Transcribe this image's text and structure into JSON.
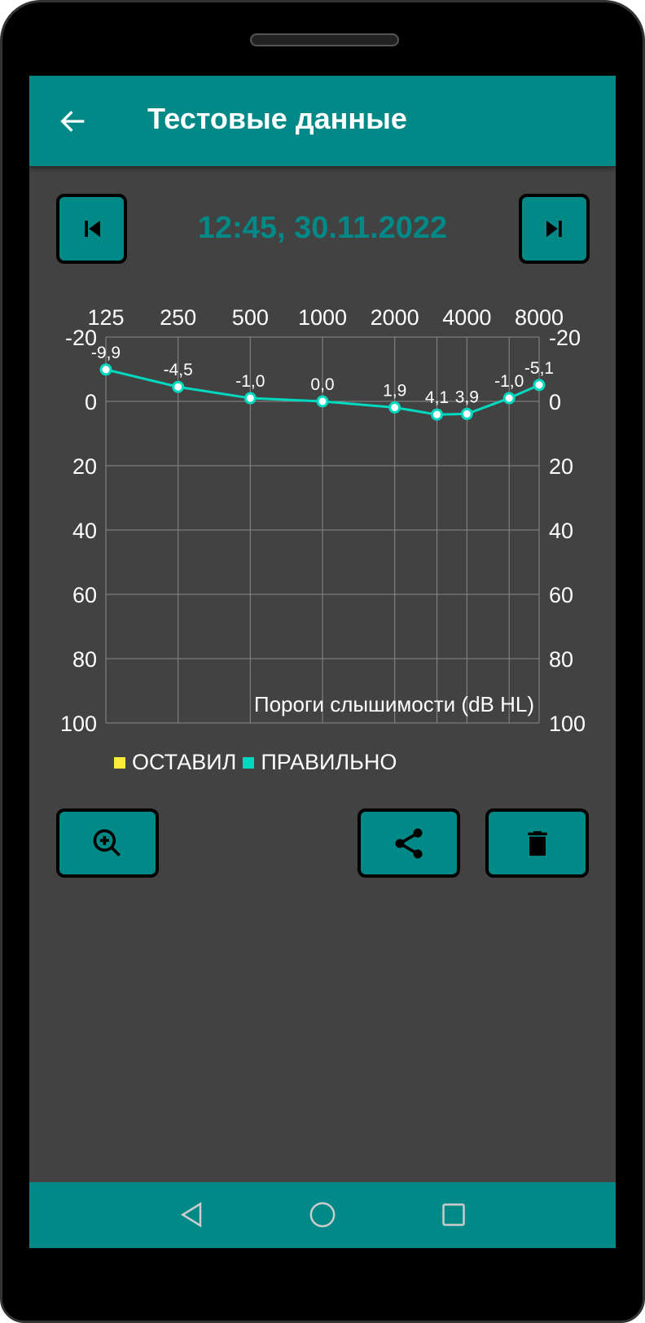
{
  "appbar": {
    "title": "Тестовые данные",
    "back_icon": "arrow-left-icon"
  },
  "record": {
    "datetime": "12:45, 30.11.2022",
    "prev_icon": "skip-previous-icon",
    "next_icon": "skip-next-icon"
  },
  "colors": {
    "primary": "#008986",
    "background": "#424242",
    "series_correct": "#00d9c0",
    "series_left": "#ffeb3b"
  },
  "chart_data": {
    "type": "line",
    "x": [
      125,
      250,
      500,
      1000,
      2000,
      3000,
      4000,
      6000,
      8000
    ],
    "x_tick_labels": [
      "125",
      "250",
      "500",
      "1000",
      "2000",
      "4000",
      "8000"
    ],
    "x_tick_values": [
      125,
      250,
      500,
      1000,
      2000,
      4000,
      8000
    ],
    "y_tick_labels": [
      "-20",
      "0",
      "20",
      "40",
      "60",
      "80",
      "100"
    ],
    "ylim": [
      -20,
      100
    ],
    "y_inverted": true,
    "ylabel": "Пороги слышимости (dB HL)",
    "grid": true,
    "series": [
      {
        "name": "ПРАВИЛЬНО",
        "color": "#00d9c0",
        "values": [
          -9.9,
          -4.5,
          -1.0,
          0.0,
          1.9,
          4.1,
          3.9,
          -1.0,
          -5.1
        ],
        "labels": [
          "-9,9",
          "-4,5",
          "-1,0",
          "0,0",
          "1,9",
          "4,1",
          "3,9",
          "-1,0",
          "-5,1"
        ]
      }
    ],
    "legend": [
      {
        "label": "ОСТАВИЛ",
        "color": "#ffeb3b"
      },
      {
        "label": "ПРАВИЛЬНО",
        "color": "#00d9c0"
      }
    ],
    "legend_placement": "bottom-left"
  },
  "actions": {
    "zoom_icon": "zoom-in-icon",
    "share_icon": "share-icon",
    "delete_icon": "trash-icon"
  },
  "navbar": {
    "back_icon": "nav-back-icon",
    "home_icon": "nav-home-icon",
    "recents_icon": "nav-recents-icon"
  }
}
